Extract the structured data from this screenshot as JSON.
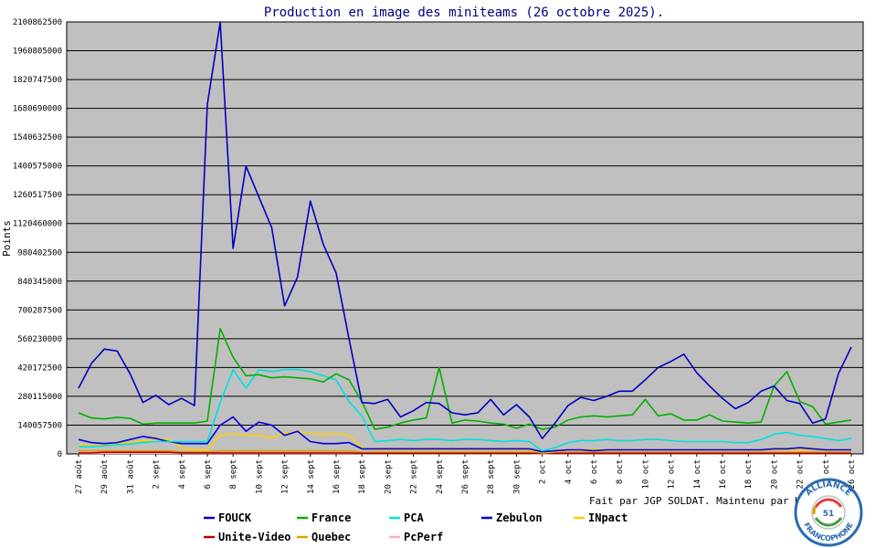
{
  "chart_data": {
    "type": "line",
    "title": "Production en image des miniteams (26 octobre 2025).",
    "ylabel": "Points",
    "ylim": [
      0,
      2100862500
    ],
    "yticks": [
      "0",
      "140057500",
      "280115000",
      "420172500",
      "560230000",
      "700287500",
      "840345000",
      "980402500",
      "1120460000",
      "1260517500",
      "1400575000",
      "1540632500",
      "1680690000",
      "1820747500",
      "1960805000",
      "2100862500"
    ],
    "x_tick_labels": [
      "27 août",
      "29 août",
      "31 août",
      "2 sept",
      "4 sept",
      "6 sept",
      "8 sept",
      "10 sept",
      "12 sept",
      "14 sept",
      "16 sept",
      "18 sept",
      "20 sept",
      "22 sept",
      "24 sept",
      "26 sept",
      "28 sept",
      "30 sept",
      "2 oct",
      "4 oct",
      "6 oct",
      "8 oct",
      "10 oct",
      "12 oct",
      "14 oct",
      "16 oct",
      "18 oct",
      "20 oct",
      "22 oct",
      "24 oct",
      "26 oct"
    ],
    "grid": true,
    "legend_position": "bottom",
    "series": [
      {
        "name": "FOUCK",
        "color": "#0000c0",
        "values": [
          320000000,
          440000000,
          510000000,
          500000000,
          390000000,
          250000000,
          285000000,
          240000000,
          270000000,
          235000000,
          1700000000,
          2100000000,
          1000000000,
          1400000000,
          1250000000,
          1100000000,
          720000000,
          860000000,
          1230000000,
          1020000000,
          880000000,
          560000000,
          250000000,
          245000000,
          265000000,
          180000000,
          210000000,
          250000000,
          245000000,
          200000000,
          190000000,
          200000000,
          265000000,
          190000000,
          240000000,
          180000000,
          75000000,
          150000000,
          235000000,
          275000000,
          260000000,
          280000000,
          305000000,
          305000000,
          360000000,
          420000000,
          450000000,
          485000000,
          395000000,
          330000000,
          270000000,
          220000000,
          250000000,
          305000000,
          330000000,
          260000000,
          245000000,
          150000000,
          170000000,
          390000000,
          520000000
        ]
      },
      {
        "name": "France",
        "color": "#00b000",
        "values": [
          200000000,
          175000000,
          170000000,
          178000000,
          173000000,
          145000000,
          150000000,
          150000000,
          150000000,
          150000000,
          160000000,
          610000000,
          470000000,
          380000000,
          385000000,
          370000000,
          375000000,
          370000000,
          365000000,
          350000000,
          390000000,
          360000000,
          255000000,
          120000000,
          130000000,
          150000000,
          165000000,
          175000000,
          420000000,
          150000000,
          165000000,
          160000000,
          150000000,
          145000000,
          125000000,
          145000000,
          120000000,
          130000000,
          165000000,
          180000000,
          185000000,
          180000000,
          185000000,
          190000000,
          265000000,
          185000000,
          195000000,
          165000000,
          165000000,
          190000000,
          160000000,
          155000000,
          150000000,
          155000000,
          330000000,
          400000000,
          255000000,
          230000000,
          145000000,
          155000000,
          165000000
        ]
      },
      {
        "name": "PCA",
        "color": "#00e0e0",
        "values": [
          35000000,
          35000000,
          40000000,
          45000000,
          48000000,
          55000000,
          60000000,
          60000000,
          60000000,
          60000000,
          60000000,
          250000000,
          410000000,
          320000000,
          410000000,
          400000000,
          410000000,
          410000000,
          400000000,
          380000000,
          360000000,
          255000000,
          185000000,
          60000000,
          65000000,
          70000000,
          65000000,
          70000000,
          70000000,
          65000000,
          70000000,
          70000000,
          65000000,
          60000000,
          65000000,
          60000000,
          15000000,
          30000000,
          55000000,
          65000000,
          65000000,
          70000000,
          65000000,
          65000000,
          70000000,
          70000000,
          65000000,
          60000000,
          60000000,
          60000000,
          60000000,
          55000000,
          55000000,
          70000000,
          95000000,
          105000000,
          90000000,
          85000000,
          75000000,
          65000000,
          75000000
        ]
      },
      {
        "name": "Zebulon",
        "color": "#0000e0",
        "values": [
          70000000,
          55000000,
          50000000,
          55000000,
          70000000,
          85000000,
          75000000,
          60000000,
          50000000,
          50000000,
          50000000,
          140000000,
          180000000,
          110000000,
          155000000,
          140000000,
          90000000,
          110000000,
          60000000,
          50000000,
          50000000,
          55000000,
          25000000,
          25000000,
          25000000,
          25000000,
          25000000,
          25000000,
          25000000,
          25000000,
          25000000,
          25000000,
          25000000,
          25000000,
          25000000,
          25000000,
          10000000,
          15000000,
          20000000,
          20000000,
          15000000,
          20000000,
          20000000,
          20000000,
          20000000,
          20000000,
          20000000,
          20000000,
          20000000,
          20000000,
          20000000,
          20000000,
          20000000,
          20000000,
          25000000,
          25000000,
          30000000,
          25000000,
          20000000,
          20000000,
          20000000
        ]
      },
      {
        "name": "INpact",
        "color": "#ffd000",
        "values": [
          45000000,
          40000000,
          45000000,
          50000000,
          55000000,
          65000000,
          70000000,
          70000000,
          30000000,
          20000000,
          20000000,
          90000000,
          100000000,
          90000000,
          90000000,
          80000000,
          100000000,
          110000000,
          100000000,
          95000000,
          100000000,
          90000000,
          30000000,
          20000000,
          20000000,
          20000000,
          20000000,
          20000000,
          20000000,
          20000000,
          20000000,
          20000000,
          20000000,
          20000000,
          20000000,
          20000000,
          5000000,
          10000000,
          20000000,
          20000000,
          20000000,
          20000000,
          20000000,
          20000000,
          20000000,
          20000000,
          20000000,
          20000000,
          20000000,
          20000000,
          20000000,
          20000000,
          20000000,
          20000000,
          20000000,
          20000000,
          20000000,
          20000000,
          20000000,
          20000000,
          20000000
        ]
      },
      {
        "name": "Unite-Video",
        "color": "#b00000",
        "values": [
          5000000,
          5000000,
          8000000,
          8000000,
          8000000,
          8000000,
          8000000,
          8000000,
          5000000,
          5000000,
          5000000,
          5000000,
          5000000,
          5000000,
          5000000,
          5000000,
          5000000,
          5000000,
          5000000,
          5000000,
          5000000,
          5000000,
          3000000,
          3000000,
          3000000,
          3000000,
          3000000,
          3000000,
          3000000,
          3000000,
          3000000,
          3000000,
          3000000,
          3000000,
          3000000,
          3000000,
          2000000,
          3000000,
          3000000,
          3000000,
          3000000,
          3000000,
          3000000,
          3000000,
          3000000,
          3000000,
          3000000,
          3000000,
          3000000,
          3000000,
          3000000,
          3000000,
          3000000,
          3000000,
          3000000,
          3000000,
          3000000,
          3000000,
          3000000,
          3000000,
          3000000
        ]
      },
      {
        "name": "Quebec",
        "color": "#e0a000",
        "values": [
          15000000,
          15000000,
          15000000,
          15000000,
          15000000,
          15000000,
          15000000,
          15000000,
          10000000,
          10000000,
          10000000,
          15000000,
          15000000,
          15000000,
          15000000,
          15000000,
          15000000,
          15000000,
          15000000,
          15000000,
          15000000,
          15000000,
          8000000,
          8000000,
          8000000,
          8000000,
          8000000,
          8000000,
          8000000,
          8000000,
          8000000,
          8000000,
          8000000,
          8000000,
          8000000,
          8000000,
          4000000,
          6000000,
          8000000,
          8000000,
          8000000,
          8000000,
          8000000,
          8000000,
          8000000,
          8000000,
          8000000,
          8000000,
          8000000,
          8000000,
          8000000,
          8000000,
          8000000,
          8000000,
          8000000,
          8000000,
          8000000,
          8000000,
          8000000,
          8000000,
          8000000
        ]
      },
      {
        "name": "PcPerf",
        "color": "#ffb0c0",
        "values": [
          3000000,
          3000000,
          3000000,
          3000000,
          3000000,
          3000000,
          3000000,
          3000000,
          3000000,
          3000000,
          3000000,
          3000000,
          3000000,
          3000000,
          3000000,
          3000000,
          3000000,
          3000000,
          3000000,
          3000000,
          3000000,
          3000000,
          2000000,
          2000000,
          2000000,
          2000000,
          2000000,
          2000000,
          2000000,
          2000000,
          2000000,
          2000000,
          2000000,
          2000000,
          2000000,
          2000000,
          1000000,
          2000000,
          2000000,
          2000000,
          2000000,
          2000000,
          2000000,
          2000000,
          2000000,
          2000000,
          2000000,
          2000000,
          2000000,
          2000000,
          2000000,
          2000000,
          2000000,
          2000000,
          2000000,
          2000000,
          2000000,
          2000000,
          2000000,
          2000000,
          2000000
        ]
      }
    ]
  },
  "credit": "Fait par JGP SOLDAT. Maintenu par Kana-chan.",
  "logo": {
    "top_text": "ALLIANCE",
    "bottom_text": "FRANCOPHONE",
    "number": "51",
    "ring_color": "#2a6bb0"
  }
}
